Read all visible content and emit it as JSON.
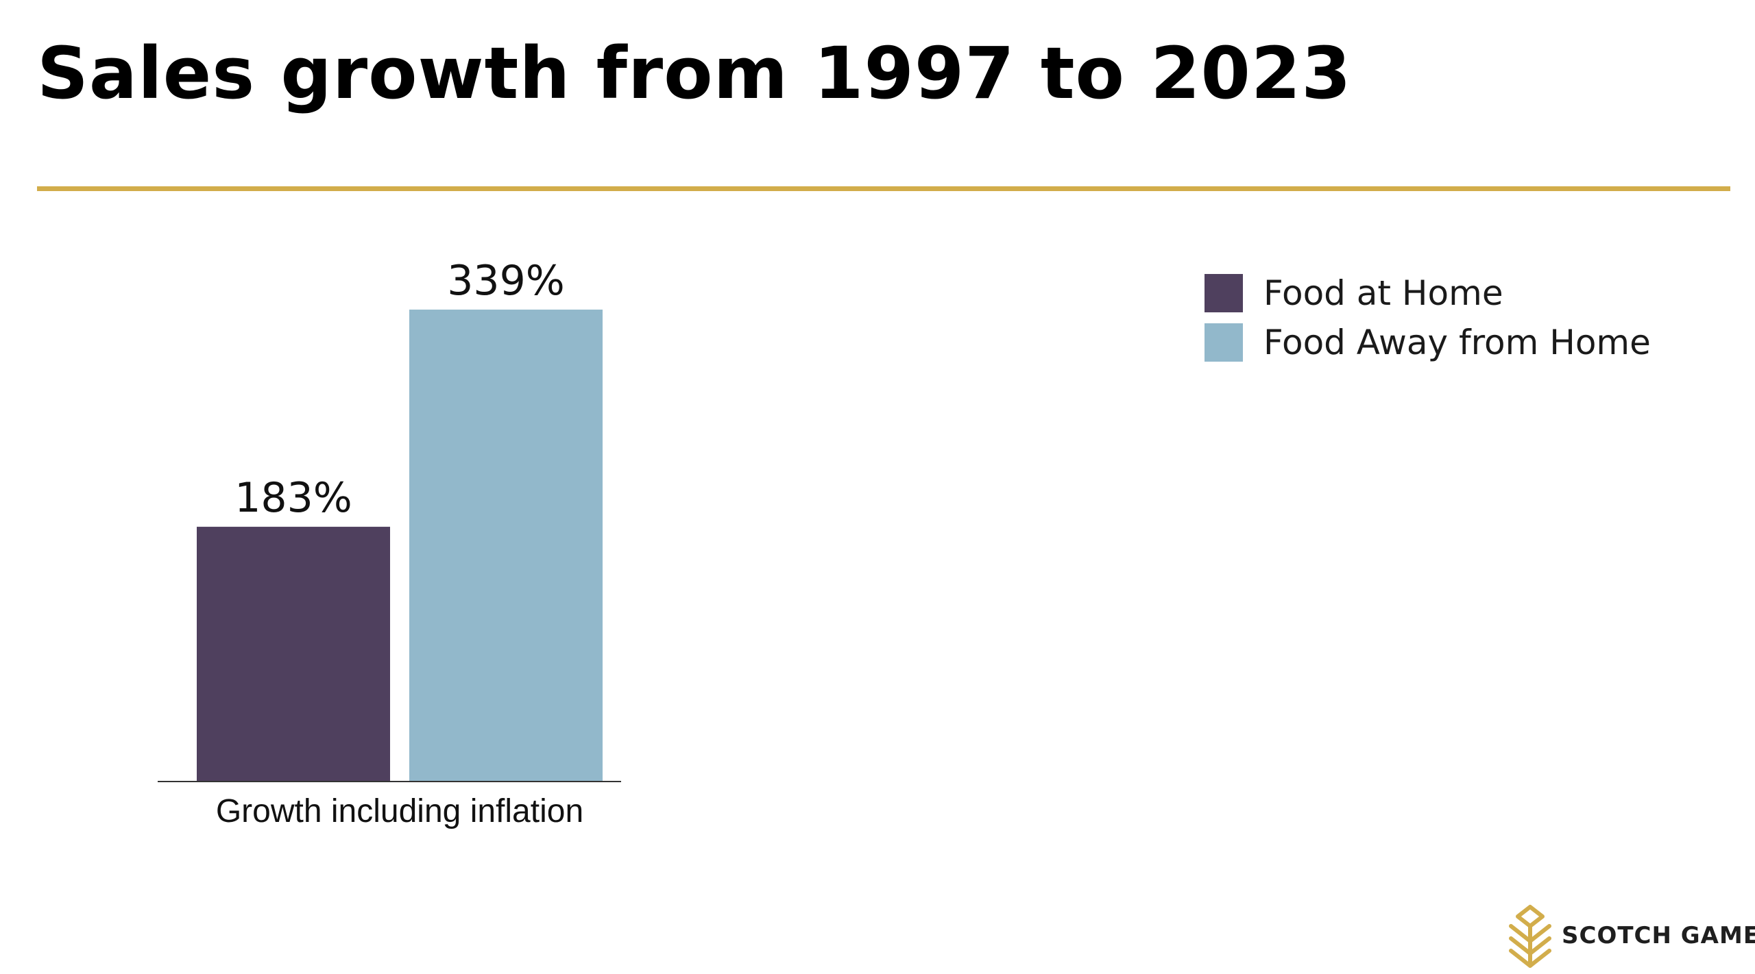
{
  "title": "Sales growth from 1997 to 2023",
  "brand": {
    "name": "SCOTCH GAME",
    "accent_color": "#d2ad4b"
  },
  "chart_data": {
    "type": "bar",
    "title": "Sales growth from 1997 to 2023",
    "categories": [
      "Growth including inflation"
    ],
    "series": [
      {
        "name": "Food at Home",
        "values": [
          183
        ],
        "color": "#4f405e",
        "labels": [
          "183%"
        ]
      },
      {
        "name": "Food Away from Home",
        "values": [
          339
        ],
        "color": "#92b8cb",
        "labels": [
          "339%"
        ]
      }
    ],
    "unit": "%",
    "ylim": [
      0,
      339
    ],
    "grid": false,
    "legend_position": "top-right"
  }
}
